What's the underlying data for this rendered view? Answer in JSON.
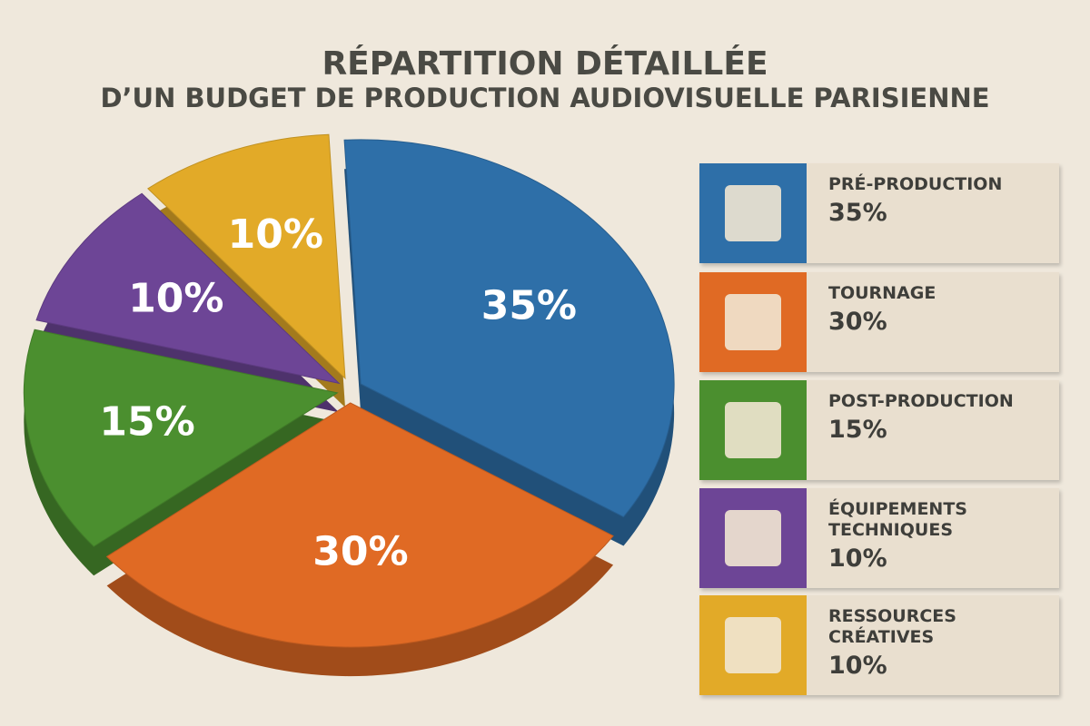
{
  "chart_data": {
    "type": "pie",
    "title": "RÉPARTITION DÉTAILLÉE",
    "subtitle": "D’UN BUDGET DE PRODUCTION AUDIOVISUELLE PARISIENNE",
    "categories": [
      "PRÉ-PRODUCTION",
      "TOURNAGE",
      "POST-PRODUCTION",
      "ÉQUIPEMENTS TECHNIQUES",
      "RESSOURCES CRÉATIVES"
    ],
    "values": [
      35,
      30,
      15,
      10,
      10
    ],
    "value_labels": [
      "35%",
      "30%",
      "15%",
      "10%",
      "10%"
    ],
    "colors": [
      "#2e6fa8",
      "#e06a24",
      "#4b8f2f",
      "#6d4596",
      "#e2aa28"
    ],
    "legend": "right"
  }
}
